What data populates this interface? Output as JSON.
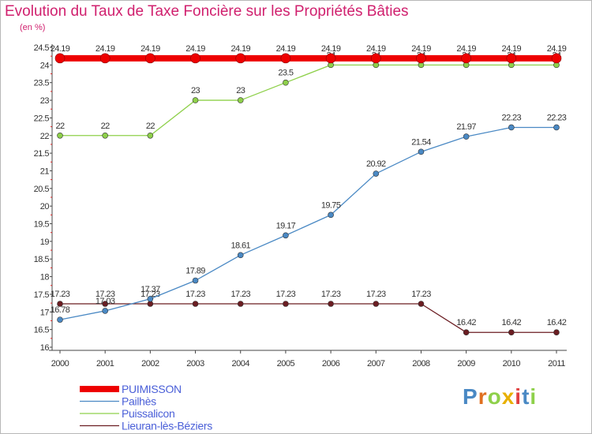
{
  "chart_data": {
    "type": "line",
    "title": "Evolution du Taux de Taxe Foncière sur les Propriétés Bâties",
    "ylabel": "(en %)",
    "xlabel": "",
    "ylim": [
      16,
      24.5
    ],
    "yticks": [
      "16",
      "16.5",
      "17",
      "17.5",
      "18",
      "18.5",
      "19",
      "19.5",
      "20",
      "20.5",
      "21",
      "21.5",
      "22",
      "22.5",
      "23",
      "23.5",
      "24",
      "24.5"
    ],
    "x": [
      "2000",
      "2001",
      "2002",
      "2003",
      "2004",
      "2005",
      "2006",
      "2007",
      "2008",
      "2009",
      "2010",
      "2011"
    ],
    "series": [
      {
        "name": "Lieuran-lès-Béziers",
        "color": "#6b1d22",
        "values": [
          17.23,
          17.23,
          17.23,
          17.23,
          17.23,
          17.23,
          17.23,
          17.23,
          17.23,
          16.42,
          16.42,
          16.42
        ],
        "labels": [
          "17.23",
          "17.23",
          "17.23",
          "17.23",
          "17.23",
          "17.23",
          "17.23",
          "17.23",
          "17.23",
          "16.42",
          "16.42",
          "16.42"
        ]
      },
      {
        "name": "Pailhès",
        "color": "#4a89c4",
        "values": [
          16.78,
          17.03,
          17.37,
          17.89,
          18.61,
          19.17,
          19.75,
          20.92,
          21.54,
          21.97,
          22.23,
          22.23
        ],
        "labels": [
          "16.78",
          "17.03",
          "17.37",
          "17.89",
          "18.61",
          "19.17",
          "19.75",
          "20.92",
          "21.54",
          "21.97",
          "22.23",
          "22.23"
        ]
      },
      {
        "name": "Puissalicon",
        "color": "#8ed04a",
        "values": [
          22,
          22,
          22,
          23,
          23,
          23.5,
          24,
          24,
          24,
          24,
          24,
          24
        ],
        "labels": [
          "22",
          "22",
          "22",
          "23",
          "23",
          "23.5",
          "24",
          "24",
          "24",
          "24",
          "24",
          "24"
        ]
      },
      {
        "name": "PUIMISSON",
        "color": "#ee0000",
        "values": [
          24.19,
          24.19,
          24.19,
          24.19,
          24.19,
          24.19,
          24.19,
          24.19,
          24.19,
          24.19,
          24.19,
          24.19
        ],
        "labels": [
          "24.19",
          "24.19",
          "24.19",
          "24.19",
          "24.19",
          "24.19",
          "24.19",
          "24.19",
          "24.19",
          "24.19",
          "24.19",
          "24.19"
        ]
      }
    ],
    "legend": [
      {
        "name": "PUIMISSON",
        "color": "#ee0000",
        "label_color": "#4a5fd8"
      },
      {
        "name": "Pailhès",
        "color": "#4a89c4",
        "label_color": "#4a5fd8"
      },
      {
        "name": "Puissalicon",
        "color": "#8ed04a",
        "label_color": "#4a5fd8"
      },
      {
        "name": "Lieuran-lès-Béziers",
        "color": "#6b1d22",
        "label_color": "#4a5fd8"
      }
    ],
    "legend_position": "bottom-left",
    "grid": false
  },
  "logo": {
    "text": "Proxiti",
    "colors": [
      "#4a89c4",
      "#e07020",
      "#8ed04a",
      "#e8b000",
      "#e04040",
      "#4a89c4",
      "#8ed04a"
    ]
  }
}
